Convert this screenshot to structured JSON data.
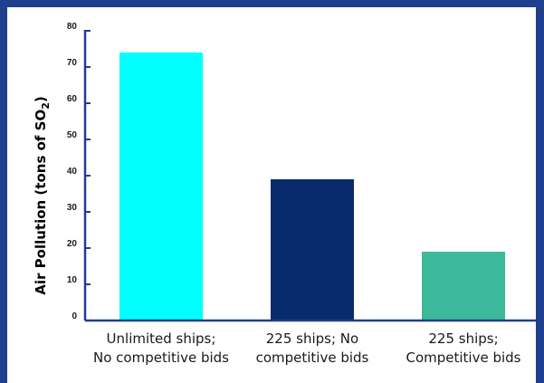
{
  "chart_data": {
    "type": "bar",
    "categories": [
      [
        "Unlimited ships;",
        "No competitive bids"
      ],
      [
        "225 ships; No",
        "competitive bids"
      ],
      [
        "225 ships;",
        "Competitive bids"
      ]
    ],
    "values": [
      74,
      39,
      19
    ],
    "colors": [
      "#00ffff",
      "#0a2a6e",
      "#3cb89a"
    ],
    "ylabel": {
      "main": "Air Pollution (tons of SO",
      "sub": "2",
      "close": ")"
    },
    "ylim": [
      0,
      80
    ],
    "yticks": [
      "0",
      "10",
      "20",
      "30",
      "40",
      "50",
      "60",
      "70",
      "80"
    ],
    "axis_color": "#1f3f8f",
    "grid": false,
    "legend": "none"
  }
}
